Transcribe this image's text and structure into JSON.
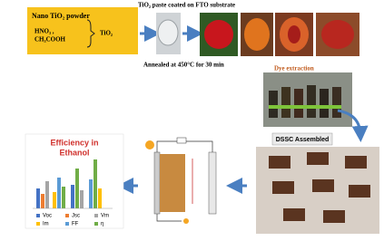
{
  "header": {
    "paste_label": "TiO₂ paste coated on FTO substrate",
    "anneal_label": "Annealed at 450°C for 30 min"
  },
  "precursor_box": {
    "powder": "Nano TiO₂ powder",
    "acid": "HNO₃ ,",
    "acetic": "CH₃COOH",
    "product": "TiO₂"
  },
  "dye_label": "Dye extraction",
  "assembled_label": "DSSC Assembled",
  "efficiency_chart": {
    "title_lines": [
      "Efficiency in",
      "Ethanol"
    ],
    "legend": [
      "Voc",
      "Jsc",
      "Vm",
      "Im",
      "FF",
      "η"
    ]
  }
}
